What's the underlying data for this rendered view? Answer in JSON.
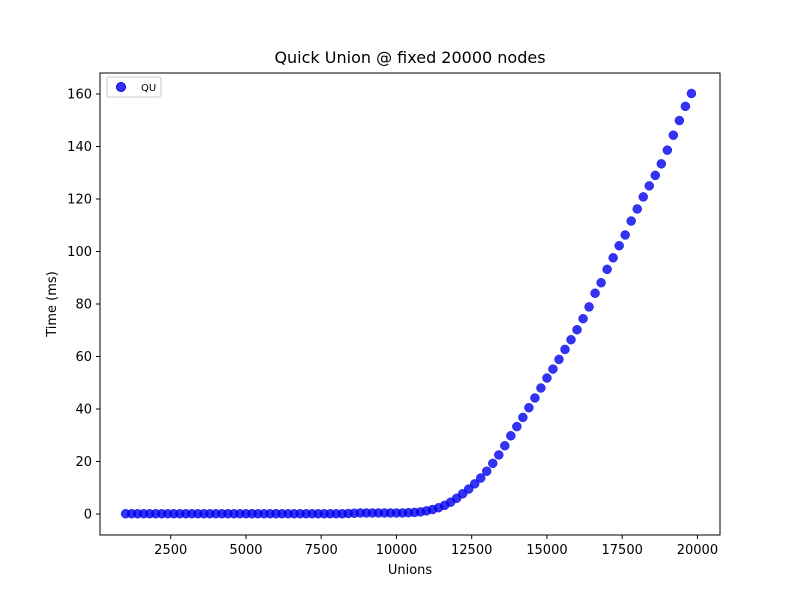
{
  "chart_data": {
    "type": "scatter",
    "title": "Quick Union @ fixed 20000 nodes",
    "xlabel": "Unions",
    "ylabel": "Time (ms)",
    "xlim": [
      150,
      20750
    ],
    "ylim": [
      -8,
      168
    ],
    "xticks": [
      2500,
      5000,
      7500,
      10000,
      12500,
      15000,
      17500,
      20000
    ],
    "yticks": [
      0,
      20,
      40,
      60,
      80,
      100,
      120,
      140,
      160
    ],
    "grid": false,
    "legend_position": "top-left",
    "series": [
      {
        "name": "QU",
        "color": "#0000ee",
        "points": [
          [
            1000,
            0.1
          ],
          [
            1200,
            0.1
          ],
          [
            1400,
            0.1
          ],
          [
            1600,
            0.1
          ],
          [
            1800,
            0.1
          ],
          [
            2000,
            0.1
          ],
          [
            2200,
            0.1
          ],
          [
            2400,
            0.1
          ],
          [
            2600,
            0.1
          ],
          [
            2800,
            0.1
          ],
          [
            3000,
            0.1
          ],
          [
            3200,
            0.1
          ],
          [
            3400,
            0.1
          ],
          [
            3600,
            0.1
          ],
          [
            3800,
            0.1
          ],
          [
            4000,
            0.1
          ],
          [
            4200,
            0.1
          ],
          [
            4400,
            0.1
          ],
          [
            4600,
            0.1
          ],
          [
            4800,
            0.1
          ],
          [
            5000,
            0.1
          ],
          [
            5200,
            0.1
          ],
          [
            5400,
            0.1
          ],
          [
            5600,
            0.1
          ],
          [
            5800,
            0.1
          ],
          [
            6000,
            0.1
          ],
          [
            6200,
            0.1
          ],
          [
            6400,
            0.1
          ],
          [
            6600,
            0.1
          ],
          [
            6800,
            0.1
          ],
          [
            7000,
            0.1
          ],
          [
            7200,
            0.1
          ],
          [
            7400,
            0.1
          ],
          [
            7600,
            0.1
          ],
          [
            7800,
            0.1
          ],
          [
            8000,
            0.1
          ],
          [
            8200,
            0.1
          ],
          [
            8400,
            0.2
          ],
          [
            8600,
            0.3
          ],
          [
            8800,
            0.4
          ],
          [
            9000,
            0.4
          ],
          [
            9200,
            0.4
          ],
          [
            9400,
            0.4
          ],
          [
            9600,
            0.4
          ],
          [
            9800,
            0.4
          ],
          [
            10000,
            0.4
          ],
          [
            10200,
            0.4
          ],
          [
            10400,
            0.5
          ],
          [
            10600,
            0.6
          ],
          [
            10800,
            0.8
          ],
          [
            11000,
            1.2
          ],
          [
            11200,
            1.7
          ],
          [
            11400,
            2.4
          ],
          [
            11600,
            3.3
          ],
          [
            11800,
            4.5
          ],
          [
            12000,
            6.0
          ],
          [
            12200,
            7.7
          ],
          [
            12400,
            9.5
          ],
          [
            12600,
            11.5
          ],
          [
            12800,
            13.7
          ],
          [
            13000,
            16.3
          ],
          [
            13200,
            19.3
          ],
          [
            13400,
            22.5
          ],
          [
            13600,
            26.0
          ],
          [
            13800,
            29.8
          ],
          [
            14000,
            33.3
          ],
          [
            14200,
            36.8
          ],
          [
            14400,
            40.5
          ],
          [
            14600,
            44.2
          ],
          [
            14800,
            48.0
          ],
          [
            15000,
            51.8
          ],
          [
            15200,
            55.2
          ],
          [
            15400,
            58.9
          ],
          [
            15600,
            62.7
          ],
          [
            15800,
            66.4
          ],
          [
            16000,
            70.2
          ],
          [
            16200,
            74.4
          ],
          [
            16400,
            78.9
          ],
          [
            16600,
            84.1
          ],
          [
            16800,
            88.1
          ],
          [
            17000,
            93.2
          ],
          [
            17200,
            97.6
          ],
          [
            17400,
            102.2
          ],
          [
            17600,
            106.3
          ],
          [
            17800,
            111.6
          ],
          [
            18000,
            116.2
          ],
          [
            18200,
            120.8
          ],
          [
            18400,
            125.0
          ],
          [
            18600,
            129.0
          ],
          [
            18800,
            133.4
          ],
          [
            19000,
            138.6
          ],
          [
            19200,
            144.3
          ],
          [
            19400,
            149.9
          ],
          [
            19600,
            155.3
          ],
          [
            19800,
            160.2
          ]
        ]
      }
    ]
  }
}
